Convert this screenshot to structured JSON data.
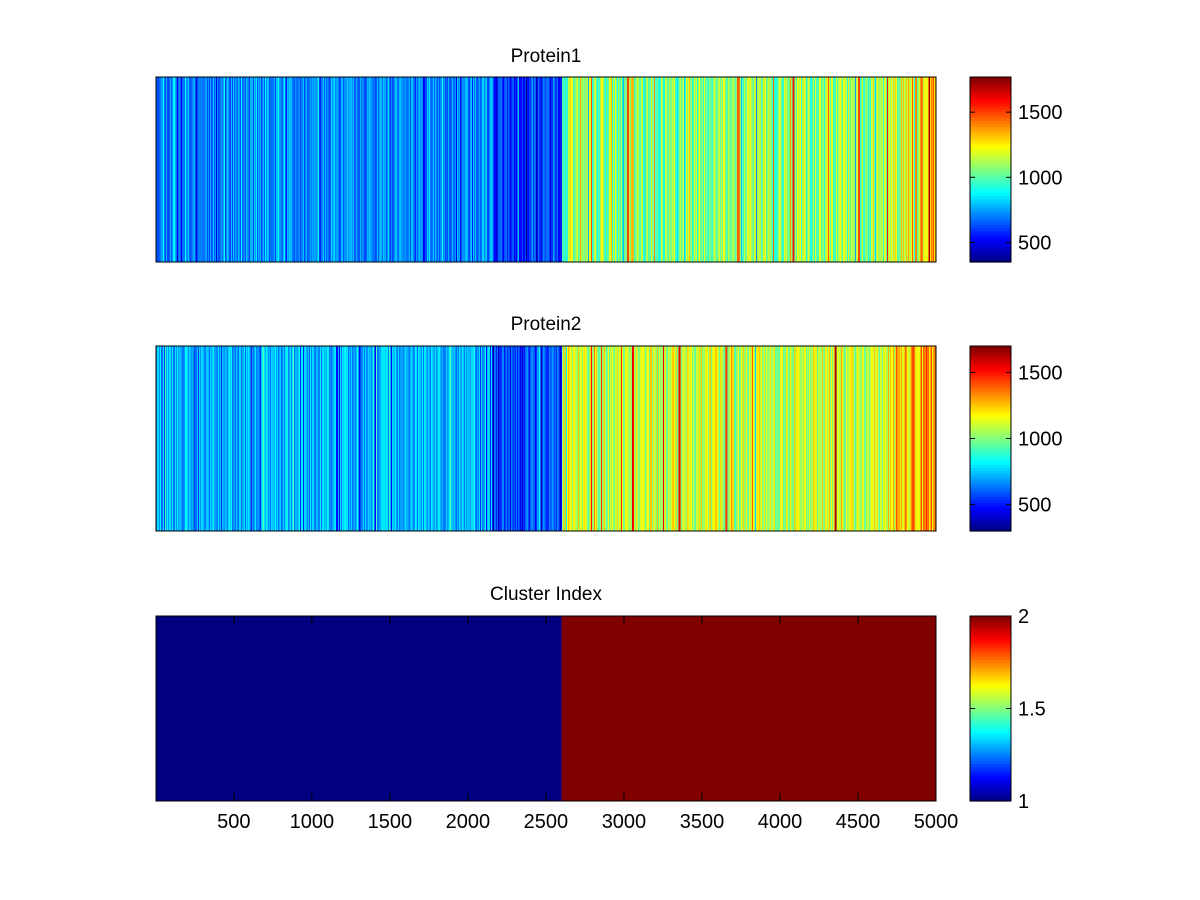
{
  "chart_data": [
    {
      "type": "heatmap",
      "title": "Protein1",
      "colormap": "jet",
      "x_range": [
        1,
        5000
      ],
      "cluster_boundary": 2600,
      "profile": {
        "cluster1_level_range": [
          600,
          800
        ],
        "cluster1_blue_band": [
          2150,
          2600
        ],
        "cluster2_base_level_range": [
          950,
          1200
        ],
        "cluster2_end_level": 1350
      },
      "color_range": [
        350,
        1770
      ],
      "colorbar_ticks": [
        500,
        1000,
        1500
      ],
      "colorbar_tick_labels": [
        "500",
        "1000",
        "1500"
      ],
      "highlight_stripes": [
        {
          "x": 3020,
          "value": 1500
        },
        {
          "x": 3050,
          "value": 1350
        },
        {
          "x": 3730,
          "value": 1450
        },
        {
          "x": 4080,
          "value": 1550
        },
        {
          "x": 4500,
          "value": 1500
        },
        {
          "x": 4900,
          "value": 1450
        }
      ]
    },
    {
      "type": "heatmap",
      "title": "Protein2",
      "colormap": "jet",
      "x_range": [
        1,
        5000
      ],
      "cluster_boundary": 2600,
      "profile": {
        "cluster1_level_range": [
          600,
          800
        ],
        "cluster1_blue_band": [
          2150,
          2600
        ],
        "cluster2_base_level_range": [
          950,
          1250
        ],
        "cluster2_end_level": 1350
      },
      "color_range": [
        300,
        1700
      ],
      "colorbar_ticks": [
        500,
        1000,
        1500
      ],
      "colorbar_tick_labels": [
        "500",
        "1000",
        "1500"
      ],
      "highlight_stripes": [
        {
          "x": 3350,
          "value": 1550
        },
        {
          "x": 3650,
          "value": 1450
        },
        {
          "x": 4350,
          "value": 1600
        },
        {
          "x": 4850,
          "value": 1450
        }
      ]
    },
    {
      "type": "heatmap",
      "title": "Cluster Index",
      "colormap": "jet",
      "x_range": [
        1,
        5000
      ],
      "segments": [
        {
          "from": 1,
          "to": 2600,
          "value": 1
        },
        {
          "from": 2600,
          "to": 5000,
          "value": 2
        }
      ],
      "color_range": [
        1,
        2
      ],
      "colorbar_ticks": [
        1,
        1.5,
        2
      ],
      "colorbar_tick_labels": [
        "1",
        "1.5",
        "2"
      ],
      "x_ticks": [
        500,
        1000,
        1500,
        2000,
        2500,
        3000,
        3500,
        4000,
        4500,
        5000
      ],
      "x_tick_labels": [
        "500",
        "1000",
        "1500",
        "2000",
        "2500",
        "3000",
        "3500",
        "4000",
        "4500",
        "5000"
      ]
    }
  ]
}
